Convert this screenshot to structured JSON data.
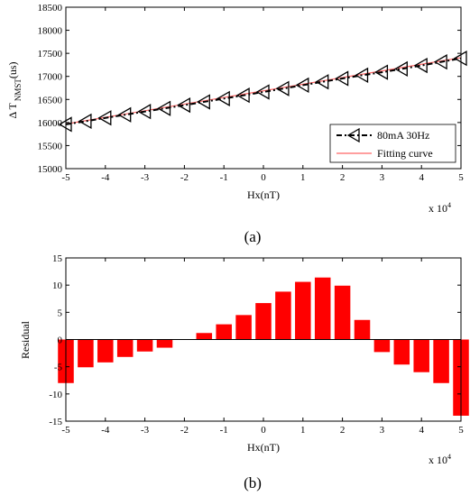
{
  "chart_data": [
    {
      "panel": "(a)",
      "type": "line",
      "xlabel": "Hx(nT)",
      "ylabel_main": "Δ T",
      "ylabel_sub": "NMST",
      "ylabel_unit": "(us)",
      "x_multiplier_base": "x 10",
      "x_multiplier_exp": "4",
      "xlim": [
        -5,
        5
      ],
      "ylim": [
        15000,
        18500
      ],
      "xticks": [
        "-5",
        "-4",
        "-3",
        "-2",
        "-1",
        "0",
        "1",
        "2",
        "3",
        "4",
        "5"
      ],
      "yticks": [
        "15000",
        "15500",
        "16000",
        "16500",
        "17000",
        "17500",
        "18000",
        "18500"
      ],
      "legend_position": "bottom-right",
      "series": [
        {
          "name": "80mA 30Hz",
          "color": "#000000",
          "marker": "left-triangle",
          "x": [
            -5,
            -4.5,
            -4,
            -3.5,
            -3,
            -2.5,
            -2,
            -1.5,
            -1,
            -0.5,
            0,
            0.5,
            1,
            1.5,
            2,
            2.5,
            3,
            3.5,
            4,
            4.5,
            5
          ],
          "y": [
            15960,
            16028,
            16100,
            16168,
            16238,
            16306,
            16377,
            16448,
            16519,
            16590,
            16663,
            16736,
            16810,
            16883,
            16955,
            17025,
            17090,
            17163,
            17237,
            17314,
            17392
          ]
        },
        {
          "name": "Fitting curve",
          "color": "#ff6666",
          "x": [
            -5,
            5
          ],
          "y": [
            15968,
            17406
          ]
        }
      ]
    },
    {
      "panel": "(b)",
      "type": "bar",
      "xlabel": "Hx(nT)",
      "ylabel": "Residual",
      "x_multiplier_base": "x 10",
      "x_multiplier_exp": "4",
      "xlim": [
        -5,
        5
      ],
      "ylim": [
        -15,
        15
      ],
      "xticks": [
        "-5",
        "-4",
        "-3",
        "-2",
        "-1",
        "0",
        "1",
        "2",
        "3",
        "4",
        "5"
      ],
      "yticks": [
        "-15",
        "-10",
        "-5",
        "0",
        "5",
        "10",
        "15"
      ],
      "bar_color": "#ff0000",
      "x": [
        -5,
        -4.5,
        -4,
        -3.5,
        -3,
        -2.5,
        -2,
        -1.5,
        -1,
        -0.5,
        0,
        0.5,
        1,
        1.5,
        2,
        2.5,
        3,
        3.5,
        4,
        4.5,
        5
      ],
      "values": [
        -8,
        -5.1,
        -4.2,
        -3.2,
        -2.2,
        -1.5,
        0,
        1.2,
        2.8,
        4.5,
        6.7,
        8.8,
        10.6,
        11.4,
        9.9,
        3.6,
        -2.3,
        -4.6,
        -6.0,
        -8.0,
        -14.0
      ]
    }
  ]
}
